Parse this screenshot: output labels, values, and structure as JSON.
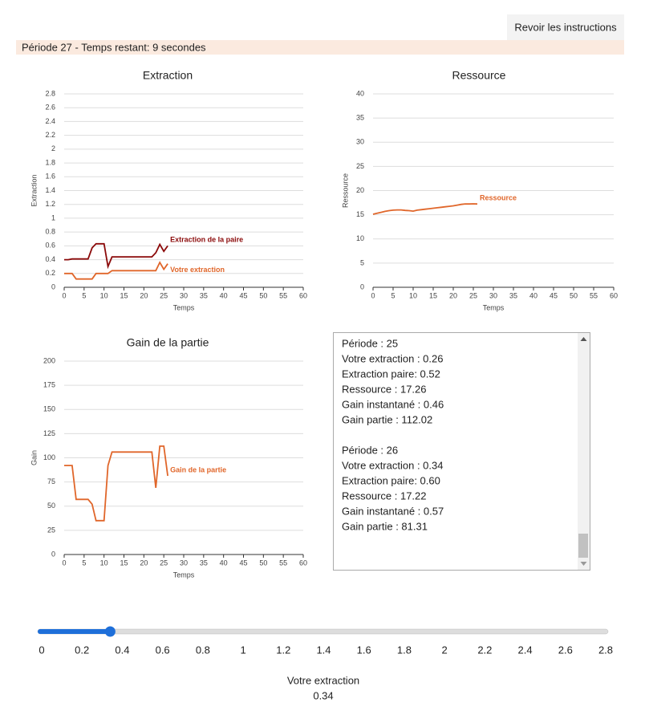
{
  "header": {
    "button": "Revoir les instructions",
    "status": "Période 27 - Temps restant: 9 secondes"
  },
  "chart_data": [
    {
      "type": "line",
      "title": "Extraction",
      "xlabel": "Temps",
      "ylabel": "Extraction",
      "x": [
        0,
        1,
        2,
        3,
        4,
        5,
        6,
        7,
        8,
        9,
        10,
        11,
        12,
        13,
        14,
        15,
        16,
        17,
        18,
        19,
        20,
        21,
        22,
        23,
        24,
        25,
        26
      ],
      "xlim": [
        0,
        60
      ],
      "xticks": [
        0,
        5,
        10,
        15,
        20,
        25,
        30,
        35,
        40,
        45,
        50,
        55,
        60
      ],
      "ylim": [
        0,
        2.8
      ],
      "yticks": [
        0,
        0.2,
        0.4,
        0.6,
        0.8,
        1,
        1.2,
        1.4,
        1.6,
        1.8,
        2,
        2.2,
        2.4,
        2.6,
        2.8
      ],
      "grid": true,
      "series": [
        {
          "name": "Extraction de la paire",
          "color": "#8b0a0a",
          "values": [
            0.4,
            0.4,
            0.41,
            0.41,
            0.41,
            0.41,
            0.41,
            0.57,
            0.63,
            0.63,
            0.63,
            0.3,
            0.44,
            0.44,
            0.44,
            0.44,
            0.44,
            0.44,
            0.44,
            0.44,
            0.44,
            0.44,
            0.44,
            0.5,
            0.62,
            0.52,
            0.6
          ]
        },
        {
          "name": "Votre extraction",
          "color": "#e0662a",
          "values": [
            0.2,
            0.2,
            0.2,
            0.12,
            0.12,
            0.12,
            0.12,
            0.12,
            0.2,
            0.2,
            0.2,
            0.2,
            0.24,
            0.24,
            0.24,
            0.24,
            0.24,
            0.24,
            0.24,
            0.24,
            0.24,
            0.24,
            0.24,
            0.24,
            0.36,
            0.26,
            0.34
          ]
        }
      ]
    },
    {
      "type": "line",
      "title": "Ressource",
      "xlabel": "Temps",
      "ylabel": "Ressource",
      "x": [
        0,
        1,
        2,
        3,
        4,
        5,
        6,
        7,
        8,
        9,
        10,
        11,
        12,
        13,
        14,
        15,
        16,
        17,
        18,
        19,
        20,
        21,
        22,
        23,
        24,
        25,
        26
      ],
      "xlim": [
        0,
        60
      ],
      "xticks": [
        0,
        5,
        10,
        15,
        20,
        25,
        30,
        35,
        40,
        45,
        50,
        55,
        60
      ],
      "ylim": [
        0,
        40
      ],
      "yticks": [
        0,
        5,
        10,
        15,
        20,
        25,
        30,
        35,
        40
      ],
      "grid": true,
      "series": [
        {
          "name": "Ressource",
          "color": "#e0662a",
          "values": [
            15.1,
            15.3,
            15.5,
            15.7,
            15.85,
            15.95,
            16.0,
            16.0,
            15.9,
            15.85,
            15.75,
            15.95,
            16.05,
            16.15,
            16.25,
            16.35,
            16.45,
            16.55,
            16.65,
            16.75,
            16.85,
            17.0,
            17.15,
            17.25,
            17.22,
            17.26,
            17.22
          ]
        }
      ]
    },
    {
      "type": "line",
      "title": "Gain de la partie",
      "xlabel": "Temps",
      "ylabel": "Gain",
      "x": [
        0,
        1,
        2,
        3,
        4,
        5,
        6,
        7,
        8,
        9,
        10,
        11,
        12,
        13,
        14,
        15,
        16,
        17,
        18,
        19,
        20,
        21,
        22,
        23,
        24,
        25,
        26
      ],
      "xlim": [
        0,
        60
      ],
      "xticks": [
        0,
        5,
        10,
        15,
        20,
        25,
        30,
        35,
        40,
        45,
        50,
        55,
        60
      ],
      "ylim": [
        0,
        200
      ],
      "yticks": [
        0,
        25,
        50,
        75,
        100,
        125,
        150,
        175,
        200
      ],
      "grid": true,
      "series": [
        {
          "name": "Gain de la partie",
          "color": "#e0662a",
          "values": [
            92,
            92,
            92,
            57,
            57,
            57,
            57,
            52,
            35,
            35,
            35,
            92,
            106,
            106,
            106,
            106,
            106,
            106,
            106,
            106,
            106,
            106,
            106,
            69,
            112,
            112.02,
            81.31
          ]
        }
      ]
    }
  ],
  "log": [
    [
      "Période : 25",
      "Votre extraction : 0.26",
      "Extraction paire: 0.52",
      "Ressource : 17.26",
      "Gain instantané : 0.46",
      "Gain partie : 112.02"
    ],
    [
      "Période : 26",
      "Votre extraction : 0.34",
      "Extraction paire: 0.60",
      "Ressource : 17.22",
      "Gain instantané : 0.57",
      "Gain partie : 81.31"
    ]
  ],
  "slider": {
    "label": "Votre extraction",
    "value": 0.34,
    "ticks": [
      0,
      0.2,
      0.4,
      0.6,
      0.8,
      1,
      1.2,
      1.4,
      1.6,
      1.8,
      2,
      2.2,
      2.4,
      2.6,
      2.8
    ]
  }
}
